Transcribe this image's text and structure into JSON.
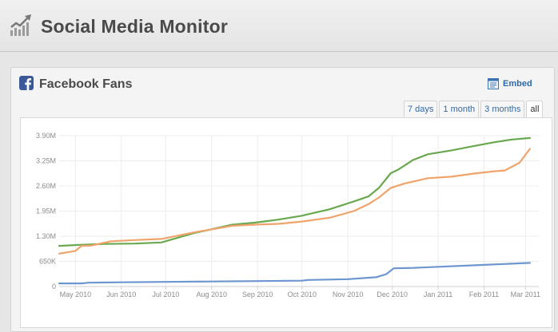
{
  "header": {
    "title": "Social Media Monitor",
    "icon": "trending-chart-icon"
  },
  "panel": {
    "title": "Facebook Fans",
    "icon": "facebook-icon",
    "embed_label": "Embed",
    "embed_icon": "embed-code-icon",
    "tabs": [
      {
        "label": "7 days",
        "active": false
      },
      {
        "label": "1 month",
        "active": false
      },
      {
        "label": "3 months",
        "active": false
      },
      {
        "label": "all",
        "active": true
      }
    ]
  },
  "chart_data": {
    "type": "line",
    "title": "",
    "xlabel": "",
    "ylabel": "",
    "grid": true,
    "legend": "none",
    "ylim": [
      0,
      3900000
    ],
    "y_ticks": [
      {
        "value": 0,
        "label": "0"
      },
      {
        "value": 650000,
        "label": "650K"
      },
      {
        "value": 1300000,
        "label": "1.30M"
      },
      {
        "value": 1950000,
        "label": "1.95M"
      },
      {
        "value": 2600000,
        "label": "2.60M"
      },
      {
        "value": 3250000,
        "label": "3.25M"
      },
      {
        "value": 3900000,
        "label": "3.90M"
      }
    ],
    "xlim": [
      "2010-04-20",
      "2011-03-10"
    ],
    "x_ticks": [
      {
        "date": "2010-05-01",
        "label": "May 2010"
      },
      {
        "date": "2010-06-01",
        "label": "Jun 2010"
      },
      {
        "date": "2010-07-01",
        "label": "Jul 2010"
      },
      {
        "date": "2010-08-01",
        "label": "Aug 2010"
      },
      {
        "date": "2010-09-01",
        "label": "Sep 2010"
      },
      {
        "date": "2010-10-01",
        "label": "Oct 2010"
      },
      {
        "date": "2010-11-01",
        "label": "Nov 2010"
      },
      {
        "date": "2010-12-01",
        "label": "Dec 2010"
      },
      {
        "date": "2011-01-01",
        "label": "Jan 2011"
      },
      {
        "date": "2011-02-01",
        "label": "Feb 2011"
      },
      {
        "date": "2011-03-01",
        "label": "Mar 2011"
      }
    ],
    "series": [
      {
        "color": "#6aa84f",
        "x": [
          "2010-04-20",
          "2010-05-05",
          "2010-05-20",
          "2010-06-10",
          "2010-06-28",
          "2010-07-20",
          "2010-08-15",
          "2010-08-30",
          "2010-09-05",
          "2010-09-15",
          "2010-10-01",
          "2010-10-20",
          "2010-11-05",
          "2010-11-15",
          "2010-11-22",
          "2010-11-30",
          "2010-12-05",
          "2010-12-15",
          "2010-12-25",
          "2011-01-10",
          "2011-01-25",
          "2011-02-08",
          "2011-02-20",
          "2011-03-04"
        ],
        "y": [
          1050000,
          1080000,
          1100000,
          1110000,
          1140000,
          1380000,
          1600000,
          1650000,
          1680000,
          1730000,
          1830000,
          2000000,
          2200000,
          2330000,
          2550000,
          2930000,
          3020000,
          3270000,
          3420000,
          3520000,
          3630000,
          3730000,
          3800000,
          3840000
        ]
      },
      {
        "color": "#f0a46b",
        "x": [
          "2010-04-20",
          "2010-05-01",
          "2010-05-05",
          "2010-05-12",
          "2010-05-25",
          "2010-06-10",
          "2010-06-28",
          "2010-07-20",
          "2010-08-15",
          "2010-08-30",
          "2010-09-15",
          "2010-10-01",
          "2010-10-20",
          "2010-11-05",
          "2010-11-15",
          "2010-11-22",
          "2010-11-30",
          "2010-12-10",
          "2010-12-25",
          "2011-01-10",
          "2011-01-25",
          "2011-02-08",
          "2011-02-15",
          "2011-02-25",
          "2011-03-04"
        ],
        "y": [
          850000,
          920000,
          1050000,
          1060000,
          1170000,
          1200000,
          1230000,
          1400000,
          1570000,
          1600000,
          1620000,
          1680000,
          1780000,
          1950000,
          2130000,
          2300000,
          2550000,
          2670000,
          2800000,
          2840000,
          2920000,
          2980000,
          3000000,
          3200000,
          3560000
        ]
      },
      {
        "color": "#6c96cf",
        "x": [
          "2010-04-20",
          "2010-05-05",
          "2010-05-10",
          "2010-06-01",
          "2010-07-01",
          "2010-08-01",
          "2010-09-01",
          "2010-10-01",
          "2010-10-05",
          "2010-11-01",
          "2010-11-20",
          "2010-11-27",
          "2010-12-02",
          "2010-12-15",
          "2011-01-01",
          "2011-02-01",
          "2011-03-04"
        ],
        "y": [
          80000,
          80000,
          100000,
          110000,
          120000,
          130000,
          140000,
          150000,
          170000,
          190000,
          240000,
          320000,
          470000,
          480000,
          510000,
          560000,
          610000
        ]
      }
    ]
  }
}
